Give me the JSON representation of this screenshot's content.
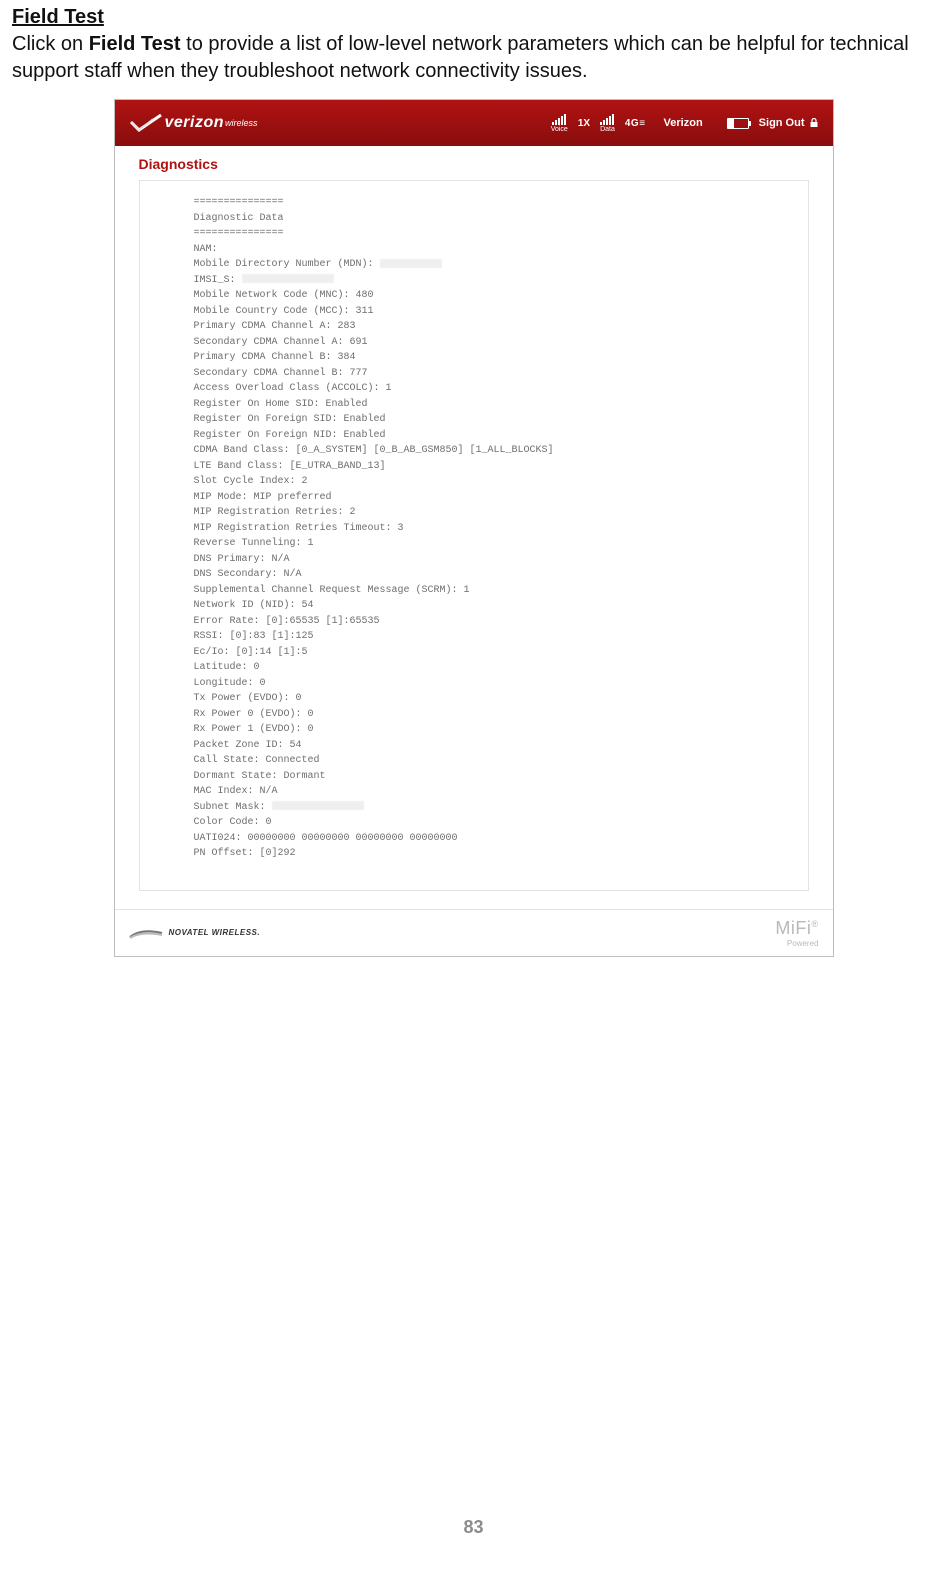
{
  "doc": {
    "heading": "Field Test",
    "intro_prefix": "Click on ",
    "intro_bold": "Field Test",
    "intro_suffix": " to provide a list of low-level network parameters which can be helpful for technical support staff when they troubleshoot network connectivity issues.",
    "page_number": "83"
  },
  "topbar": {
    "logo_main": "verizon",
    "logo_sub": "wireless",
    "voice_label": "Voice",
    "voice_mode": "1X",
    "data_label": "Data",
    "data_mode": "4G≡",
    "carrier": "Verizon",
    "signout": "Sign Out",
    "bg_color": "#a60f0f",
    "battery_pct": 30
  },
  "content": {
    "section_title": "Diagnostics"
  },
  "diag": {
    "sep": "===============",
    "title": "Diagnostic Data",
    "lines": [
      "NAM:",
      "Mobile Directory Number (MDN): [REDACTED]",
      "IMSI_S: [REDACTED_WIDE]",
      "Mobile Network Code (MNC): 480",
      "Mobile Country Code (MCC): 311",
      "Primary CDMA Channel A: 283",
      "Secondary CDMA Channel A: 691",
      "Primary CDMA Channel B: 384",
      "Secondary CDMA Channel B: 777",
      "Access Overload Class (ACCOLC): 1",
      "Register On Home SID: Enabled",
      "Register On Foreign SID: Enabled",
      "Register On Foreign NID: Enabled",
      "CDMA Band Class: [0_A_SYSTEM] [0_B_AB_GSM850] [1_ALL_BLOCKS]",
      "LTE Band Class: [E_UTRA_BAND_13]",
      "Slot Cycle Index: 2",
      "MIP Mode: MIP preferred",
      "MIP Registration Retries: 2",
      "MIP Registration Retries Timeout: 3",
      "Reverse Tunneling: 1",
      "DNS Primary: N/A",
      "DNS Secondary: N/A",
      "Supplemental Channel Request Message (SCRM): 1",
      "Network ID (NID): 54",
      "Error Rate: [0]:65535 [1]:65535",
      "RSSI: [0]:83 [1]:125",
      "Ec/Io: [0]:14 [1]:5",
      "Latitude: 0",
      "Longitude: 0",
      "Tx Power (EVDO): 0",
      "Rx Power 0 (EVDO): 0",
      "Rx Power 1 (EVDO): 0",
      "Packet Zone ID: 54",
      "Call State: Connected",
      "Dormant State: Dormant",
      "MAC Index: N/A",
      "Subnet Mask: [REDACTED_WIDE]",
      "Color Code: 0",
      "UATI024: 00000000 00000000 00000000 00000000",
      "PN Offset: [0]292"
    ]
  },
  "footer": {
    "novatel": "NOVATEL WIRELESS.",
    "mifi": "MiFi",
    "mifi_reg": "®",
    "mifi_sub": "Powered"
  }
}
